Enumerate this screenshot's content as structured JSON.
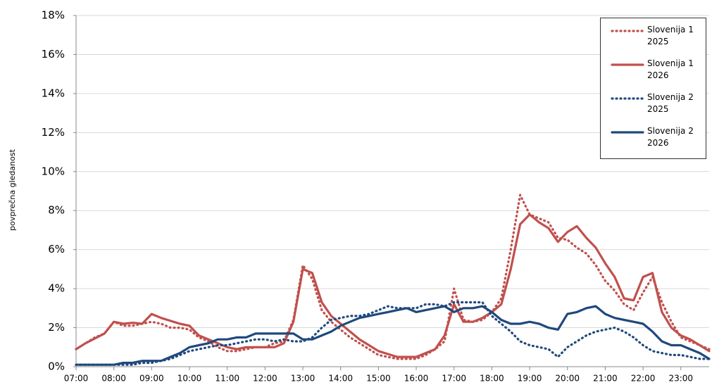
{
  "chart_data": {
    "type": "line",
    "y_label": "povprečna gledanost",
    "x": [
      7,
      7.25,
      7.5,
      7.75,
      8,
      8.25,
      8.5,
      8.75,
      9,
      9.25,
      9.5,
      9.75,
      10,
      10.25,
      10.5,
      10.75,
      11,
      11.25,
      11.5,
      11.75,
      12,
      12.25,
      12.5,
      12.75,
      13,
      13.25,
      13.5,
      13.75,
      14,
      14.25,
      14.5,
      14.75,
      15,
      15.25,
      15.5,
      15.75,
      16,
      16.25,
      16.5,
      16.75,
      17,
      17.25,
      17.5,
      17.75,
      18,
      18.25,
      18.5,
      18.75,
      19,
      19.25,
      19.5,
      19.75,
      20,
      20.25,
      20.5,
      20.75,
      21,
      21.25,
      21.5,
      21.75,
      22,
      22.25,
      22.5,
      22.75,
      23,
      23.25,
      23.5,
      23.75
    ],
    "xlim": [
      7,
      23.75
    ],
    "xticks": [
      {
        "value": 7,
        "label": "07:00"
      },
      {
        "value": 8,
        "label": "08:00"
      },
      {
        "value": 9,
        "label": "09:00"
      },
      {
        "value": 10,
        "label": "10:00"
      },
      {
        "value": 11,
        "label": "11:00"
      },
      {
        "value": 12,
        "label": "12:00"
      },
      {
        "value": 13,
        "label": "13:00"
      },
      {
        "value": 14,
        "label": "14:00"
      },
      {
        "value": 15,
        "label": "15:00"
      },
      {
        "value": 16,
        "label": "16:00"
      },
      {
        "value": 17,
        "label": "17:00"
      },
      {
        "value": 18,
        "label": "18:00"
      },
      {
        "value": 19,
        "label": "19:00"
      },
      {
        "value": 20,
        "label": "20:00"
      },
      {
        "value": 21,
        "label": "21:00"
      },
      {
        "value": 22,
        "label": "22:00"
      },
      {
        "value": 23,
        "label": "23:00"
      }
    ],
    "ylim": [
      0,
      18
    ],
    "yticks": [
      {
        "value": 0,
        "label": "0%"
      },
      {
        "value": 2,
        "label": "2%"
      },
      {
        "value": 4,
        "label": "4%"
      },
      {
        "value": 6,
        "label": "6%"
      },
      {
        "value": 8,
        "label": "8%"
      },
      {
        "value": 10,
        "label": "10%"
      },
      {
        "value": 12,
        "label": "12%"
      },
      {
        "value": 14,
        "label": "14%"
      },
      {
        "value": 16,
        "label": "16%"
      },
      {
        "value": 18,
        "label": "18%"
      }
    ],
    "grid": true,
    "legend": "upper right",
    "series": [
      {
        "name": "Slovenija 1 2025",
        "color": "#c0504d",
        "dash": "dotted",
        "values": [
          0.9,
          1.2,
          1.5,
          1.7,
          2.3,
          2.1,
          2.1,
          2.2,
          2.3,
          2.2,
          2.0,
          2.0,
          1.9,
          1.5,
          1.3,
          1.0,
          0.8,
          0.8,
          0.9,
          1.0,
          1.0,
          1.2,
          1.3,
          2.4,
          5.2,
          4.5,
          2.9,
          2.3,
          1.9,
          1.5,
          1.2,
          0.9,
          0.6,
          0.5,
          0.4,
          0.4,
          0.4,
          0.6,
          0.9,
          1.3,
          4.0,
          2.4,
          2.3,
          2.4,
          2.8,
          3.5,
          6.0,
          8.8,
          7.8,
          7.6,
          7.4,
          6.6,
          6.5,
          6.1,
          5.8,
          5.2,
          4.4,
          3.9,
          3.2,
          2.9,
          3.8,
          4.6,
          3.3,
          2.3,
          1.5,
          1.3,
          1.1,
          0.9
        ]
      },
      {
        "name": "Slovenija 1 2026",
        "color": "#c0504d",
        "dash": "solid",
        "values": [
          0.9,
          1.2,
          1.45,
          1.7,
          2.3,
          2.2,
          2.25,
          2.2,
          2.7,
          2.5,
          2.35,
          2.2,
          2.1,
          1.6,
          1.4,
          1.2,
          1.0,
          0.9,
          1.0,
          1.0,
          1.0,
          1.0,
          1.2,
          2.3,
          5.0,
          4.8,
          3.3,
          2.6,
          2.2,
          1.8,
          1.4,
          1.1,
          0.8,
          0.65,
          0.5,
          0.5,
          0.5,
          0.7,
          0.9,
          1.6,
          3.2,
          2.3,
          2.3,
          2.5,
          2.8,
          3.2,
          5.0,
          7.3,
          7.8,
          7.4,
          7.1,
          6.4,
          6.9,
          7.2,
          6.6,
          6.1,
          5.3,
          4.6,
          3.5,
          3.4,
          4.6,
          4.8,
          2.8,
          2.0,
          1.6,
          1.4,
          1.1,
          0.8
        ]
      },
      {
        "name": "Slovenija 2 2025",
        "color": "#1f497d",
        "dash": "dotted",
        "values": [
          0.1,
          0.1,
          0.1,
          0.1,
          0.1,
          0.1,
          0.1,
          0.2,
          0.2,
          0.3,
          0.4,
          0.6,
          0.8,
          0.9,
          1.0,
          1.1,
          1.1,
          1.2,
          1.3,
          1.4,
          1.4,
          1.3,
          1.4,
          1.3,
          1.3,
          1.5,
          2.0,
          2.4,
          2.5,
          2.6,
          2.6,
          2.7,
          2.9,
          3.1,
          3.0,
          3.0,
          3.0,
          3.2,
          3.2,
          3.1,
          3.3,
          3.3,
          3.3,
          3.3,
          2.6,
          2.2,
          1.8,
          1.3,
          1.1,
          1.0,
          0.9,
          0.5,
          1.0,
          1.3,
          1.6,
          1.8,
          1.9,
          2.0,
          1.8,
          1.5,
          1.1,
          0.8,
          0.7,
          0.6,
          0.6,
          0.5,
          0.4,
          0.4
        ]
      },
      {
        "name": "Slovenija 2 2026",
        "color": "#1f497d",
        "dash": "solid",
        "values": [
          0.1,
          0.1,
          0.1,
          0.1,
          0.1,
          0.2,
          0.2,
          0.3,
          0.3,
          0.3,
          0.5,
          0.7,
          1.0,
          1.1,
          1.2,
          1.4,
          1.4,
          1.5,
          1.5,
          1.7,
          1.7,
          1.7,
          1.7,
          1.7,
          1.4,
          1.4,
          1.6,
          1.8,
          2.1,
          2.3,
          2.5,
          2.6,
          2.7,
          2.8,
          2.9,
          3.0,
          2.8,
          2.9,
          3.0,
          3.1,
          2.8,
          3.0,
          3.0,
          3.1,
          2.8,
          2.4,
          2.2,
          2.2,
          2.3,
          2.2,
          2.0,
          1.9,
          2.7,
          2.8,
          3.0,
          3.1,
          2.7,
          2.5,
          2.4,
          2.3,
          2.2,
          1.8,
          1.3,
          1.1,
          1.1,
          0.9,
          0.7,
          0.4
        ]
      }
    ]
  }
}
